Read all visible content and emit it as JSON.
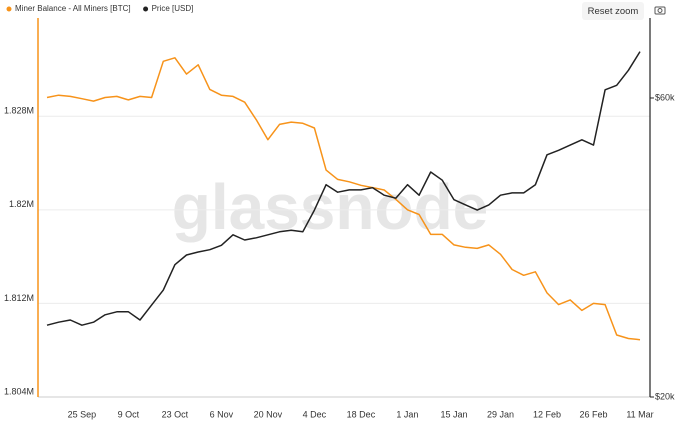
{
  "toolbar": {
    "reset_zoom": "Reset zoom"
  },
  "chart_data": {
    "type": "line",
    "watermark": "glassnode",
    "categories": [
      null,
      null,
      null,
      "25 Sep",
      null,
      null,
      null,
      "9 Oct",
      null,
      null,
      null,
      "23 Oct",
      null,
      null,
      null,
      "6 Nov",
      null,
      null,
      null,
      "20 Nov",
      null,
      null,
      null,
      "4 Dec",
      null,
      null,
      null,
      "18 Dec",
      null,
      null,
      null,
      "1 Jan",
      null,
      null,
      null,
      "15 Jan",
      null,
      null,
      null,
      "29 Jan",
      null,
      null,
      null,
      "12 Feb",
      null,
      null,
      null,
      "26 Feb",
      null,
      null,
      null,
      "11 Mar"
    ],
    "series": [
      {
        "name": "Miner Balance - All Miners [BTC]",
        "color": "#f7931a",
        "axis": "y",
        "values": [
          1829600,
          1829800,
          1829700,
          1829500,
          1829300,
          1829600,
          1829700,
          1829400,
          1829700,
          1829600,
          1832700,
          1833000,
          1831600,
          1832400,
          1830300,
          1829800,
          1829700,
          1829200,
          1827700,
          1826000,
          1827300,
          1827500,
          1827400,
          1827000,
          1823400,
          1822600,
          1822400,
          1822100,
          1821900,
          1821700,
          1820900,
          1820000,
          1819600,
          1817900,
          1817900,
          1817000,
          1816800,
          1816700,
          1817000,
          1816200,
          1814900,
          1814400,
          1814700,
          1812900,
          1811900,
          1812300,
          1811400,
          1812000,
          1811900,
          1809300,
          1809000,
          1808900
        ]
      },
      {
        "name": "Price [USD]",
        "color": "#222222",
        "axis": "y2",
        "values": [
          29600,
          30000,
          30300,
          29600,
          30000,
          31000,
          31400,
          31400,
          30300,
          32300,
          34300,
          37700,
          39000,
          39400,
          39700,
          40300,
          41700,
          41000,
          41300,
          41700,
          42100,
          42300,
          42100,
          45000,
          48400,
          47400,
          47700,
          47700,
          48000,
          47000,
          46600,
          48400,
          47000,
          50100,
          49000,
          46400,
          45700,
          45000,
          45700,
          47000,
          47300,
          47300,
          48400,
          52400,
          53000,
          53700,
          54400,
          53700,
          61100,
          61700,
          63700,
          66200
        ]
      }
    ],
    "ylim": [
      1804000,
      1836400
    ],
    "yticks": [
      {
        "value": 1804000,
        "label": "1.804M"
      },
      {
        "value": 1812000,
        "label": "1.812M"
      },
      {
        "value": 1820000,
        "label": "1.82M"
      },
      {
        "value": 1828000,
        "label": "1.828M"
      }
    ],
    "y2lim": [
      20000,
      70700
    ],
    "y2ticks": [
      {
        "value": 20000,
        "label": "$20k"
      },
      {
        "value": 60000,
        "label": "$60k"
      }
    ],
    "grid": true
  }
}
